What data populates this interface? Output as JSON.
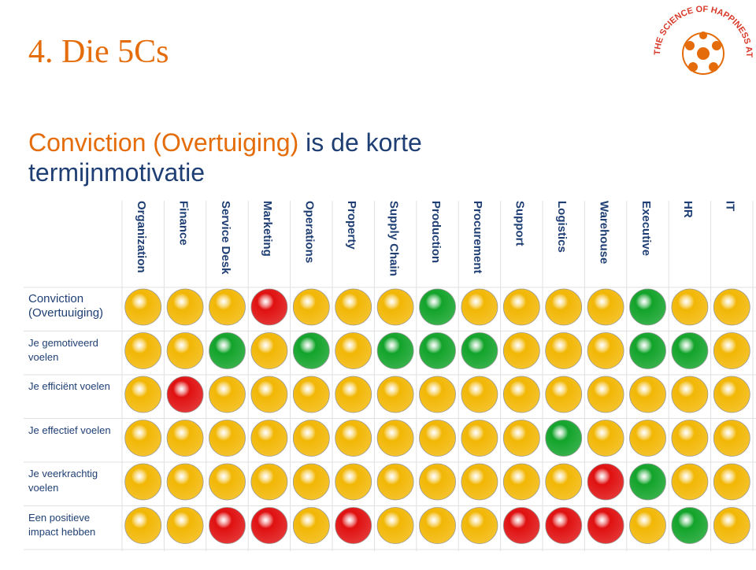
{
  "header": {
    "title": "4. Die 5Cs",
    "subtitle_highlight": "Conviction (Overtuiging)",
    "subtitle_rest": "is de korte termijnmotivatie"
  },
  "logo": {
    "text": "THE SCIENCE OF HAPPINESS AT WORK"
  },
  "table": {
    "columns": [
      "Organization",
      "Finance",
      "Service Desk",
      "Marketing",
      "Operations",
      "Property",
      "Supply Chain",
      "Production",
      "Procurement",
      "Support",
      "Logistics",
      "Warehouse",
      "Executive",
      "HR",
      "IT"
    ],
    "status_colors": {
      "yellow": "#f2b705",
      "red": "#e01010",
      "green": "#12a32a"
    },
    "rows": [
      {
        "label": "Conviction (Overtuuiging)",
        "cells": [
          "yellow",
          "yellow",
          "yellow",
          "red",
          "yellow",
          "yellow",
          "yellow",
          "green",
          "yellow",
          "yellow",
          "yellow",
          "yellow",
          "green",
          "yellow",
          "yellow"
        ]
      },
      {
        "label": "Je gemotiveerd voelen",
        "cells": [
          "yellow",
          "yellow",
          "green",
          "yellow",
          "green",
          "yellow",
          "green",
          "green",
          "green",
          "yellow",
          "yellow",
          "yellow",
          "green",
          "green",
          "yellow"
        ]
      },
      {
        "label": "Je efficiënt voelen",
        "cells": [
          "yellow",
          "red",
          "yellow",
          "yellow",
          "yellow",
          "yellow",
          "yellow",
          "yellow",
          "yellow",
          "yellow",
          "yellow",
          "yellow",
          "yellow",
          "yellow",
          "yellow"
        ]
      },
      {
        "label": "Je effectief voelen",
        "cells": [
          "yellow",
          "yellow",
          "yellow",
          "yellow",
          "yellow",
          "yellow",
          "yellow",
          "yellow",
          "yellow",
          "yellow",
          "green",
          "yellow",
          "yellow",
          "yellow",
          "yellow"
        ]
      },
      {
        "label": "Je veerkrachtig voelen",
        "cells": [
          "yellow",
          "yellow",
          "yellow",
          "yellow",
          "yellow",
          "yellow",
          "yellow",
          "yellow",
          "yellow",
          "yellow",
          "yellow",
          "red",
          "green",
          "yellow",
          "yellow"
        ]
      },
      {
        "label": "Een positieve impact hebben",
        "cells": [
          "yellow",
          "yellow",
          "red",
          "red",
          "yellow",
          "red",
          "yellow",
          "yellow",
          "yellow",
          "red",
          "red",
          "red",
          "yellow",
          "green",
          "yellow"
        ]
      }
    ]
  }
}
